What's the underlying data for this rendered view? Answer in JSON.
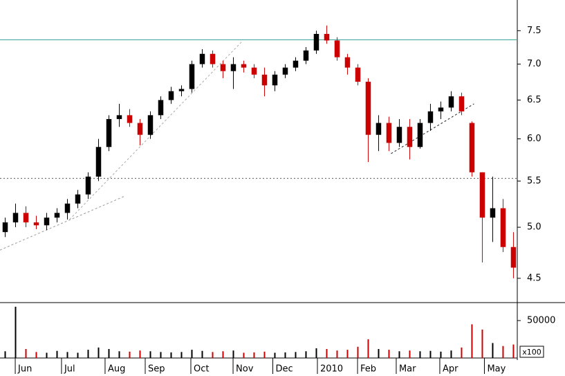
{
  "chart_data": {
    "type": "candlestick",
    "log_scale": true,
    "x": [
      0,
      1,
      2,
      3,
      4,
      5,
      6,
      7,
      8,
      9,
      10,
      11,
      12,
      13,
      14,
      15,
      16,
      17,
      18,
      19,
      20,
      21,
      22,
      23,
      24,
      25,
      26,
      27,
      28,
      29,
      30,
      31,
      32,
      33,
      34,
      35,
      36,
      37,
      38,
      39,
      40,
      41,
      42,
      43,
      44,
      45,
      46,
      47,
      48,
      49
    ],
    "ohlc": [
      [
        4.95,
        5.1,
        4.9,
        5.05
      ],
      [
        5.05,
        5.25,
        5.0,
        5.15
      ],
      [
        5.15,
        5.22,
        5.0,
        5.05
      ],
      [
        5.05,
        5.12,
        4.98,
        5.02
      ],
      [
        5.02,
        5.15,
        4.97,
        5.1
      ],
      [
        5.1,
        5.2,
        5.05,
        5.15
      ],
      [
        5.15,
        5.3,
        5.08,
        5.25
      ],
      [
        5.25,
        5.4,
        5.2,
        5.35
      ],
      [
        5.35,
        5.6,
        5.3,
        5.55
      ],
      [
        5.55,
        6.0,
        5.5,
        5.9
      ],
      [
        5.9,
        6.3,
        5.85,
        6.25
      ],
      [
        6.25,
        6.45,
        6.15,
        6.3
      ],
      [
        6.3,
        6.38,
        6.15,
        6.2
      ],
      [
        6.2,
        6.25,
        5.92,
        6.05
      ],
      [
        6.05,
        6.35,
        6.0,
        6.3
      ],
      [
        6.3,
        6.55,
        6.25,
        6.5
      ],
      [
        6.5,
        6.68,
        6.45,
        6.62
      ],
      [
        6.62,
        6.7,
        6.55,
        6.65
      ],
      [
        6.65,
        7.05,
        6.6,
        7.0
      ],
      [
        7.0,
        7.22,
        6.95,
        7.15
      ],
      [
        7.15,
        7.2,
        6.95,
        7.0
      ],
      [
        7.0,
        7.05,
        6.8,
        6.9
      ],
      [
        6.9,
        7.1,
        6.65,
        7.0
      ],
      [
        7.0,
        7.05,
        6.88,
        6.95
      ],
      [
        6.95,
        7.0,
        6.8,
        6.85
      ],
      [
        6.85,
        6.95,
        6.55,
        6.7
      ],
      [
        6.7,
        6.9,
        6.62,
        6.85
      ],
      [
        6.85,
        7.0,
        6.8,
        6.95
      ],
      [
        6.95,
        7.1,
        6.9,
        7.05
      ],
      [
        7.05,
        7.25,
        7.0,
        7.2
      ],
      [
        7.2,
        7.5,
        7.15,
        7.45
      ],
      [
        7.45,
        7.58,
        7.3,
        7.35
      ],
      [
        7.35,
        7.4,
        7.05,
        7.1
      ],
      [
        7.1,
        7.15,
        6.85,
        6.95
      ],
      [
        6.95,
        7.0,
        6.7,
        6.75
      ],
      [
        6.75,
        6.8,
        5.72,
        6.05
      ],
      [
        6.05,
        6.3,
        5.85,
        6.2
      ],
      [
        6.2,
        6.28,
        5.85,
        5.95
      ],
      [
        5.95,
        6.25,
        5.9,
        6.15
      ],
      [
        6.15,
        6.25,
        5.75,
        5.9
      ],
      [
        5.9,
        6.25,
        5.88,
        6.2
      ],
      [
        6.2,
        6.45,
        6.1,
        6.35
      ],
      [
        6.35,
        6.48,
        6.25,
        6.4
      ],
      [
        6.4,
        6.62,
        6.35,
        6.55
      ],
      [
        6.55,
        6.6,
        6.3,
        6.35
      ],
      [
        6.2,
        6.22,
        5.55,
        5.6
      ],
      [
        5.6,
        5.6,
        4.65,
        5.1
      ],
      [
        5.1,
        5.55,
        4.85,
        5.2
      ],
      [
        5.2,
        5.3,
        4.75,
        4.8
      ],
      [
        4.8,
        4.95,
        4.5,
        4.6
      ]
    ],
    "up_color": "#000000",
    "down_color": "#cc0000",
    "xlim": [
      -0.5,
      49.37
    ],
    "xticks": [
      {
        "value": 0.97,
        "label": "Jun"
      },
      {
        "value": 5.43,
        "label": "Jul"
      },
      {
        "value": 9.63,
        "label": "Aug"
      },
      {
        "value": 13.5,
        "label": "Sep"
      },
      {
        "value": 17.9,
        "label": "Oct"
      },
      {
        "value": 21.97,
        "label": "Nov"
      },
      {
        "value": 25.8,
        "label": "Dec"
      },
      {
        "value": 30.1,
        "label": "2010"
      },
      {
        "value": 33.97,
        "label": "Feb"
      },
      {
        "value": 37.7,
        "label": "Mar"
      },
      {
        "value": 41.9,
        "label": "Apr"
      },
      {
        "value": 46.2,
        "label": "May"
      }
    ],
    "ylim": [
      4.28,
      7.99
    ],
    "yticks": [
      4.5,
      {
        "value": 5,
        "label": "5.0"
      },
      5.5,
      {
        "value": 6,
        "label": "6.0"
      },
      6.5,
      {
        "value": 7,
        "label": "7.0"
      },
      7.5
    ],
    "hlines": [
      {
        "value": 7.36,
        "color": "#3aa39a",
        "dashed": false
      },
      {
        "value": 5.53,
        "color": "#555555",
        "dashed": true
      }
    ],
    "trend_lines": [
      {
        "x": [
          -0.5,
          11.5
        ],
        "y": [
          4.77,
          5.33
        ],
        "color": "#999999"
      },
      {
        "x": [
          6.2,
          22.8
        ],
        "y": [
          5.08,
          7.33
        ],
        "color": "#aaaaaa"
      },
      {
        "x": [
          37.2,
          45.2
        ],
        "y": [
          5.82,
          6.45
        ],
        "color": "#222222"
      }
    ],
    "volume": {
      "values": [
        9000,
        68500,
        12000,
        8000,
        7000,
        9500,
        8000,
        7000,
        11000,
        14000,
        12000,
        9000,
        8500,
        10000,
        9000,
        8000,
        7500,
        8000,
        11000,
        9500,
        8000,
        9000,
        10000,
        7000,
        7500,
        8500,
        7000,
        7500,
        8000,
        9000,
        13000,
        12000,
        10000,
        11000,
        15000,
        25000,
        12000,
        11000,
        9000,
        10000,
        9000,
        9500,
        8500,
        10000,
        14000,
        45000,
        38000,
        20000,
        16000,
        18000
      ],
      "ylim": [
        0,
        74000
      ],
      "yticks": [
        50000
      ],
      "unit_label": "x100"
    }
  }
}
